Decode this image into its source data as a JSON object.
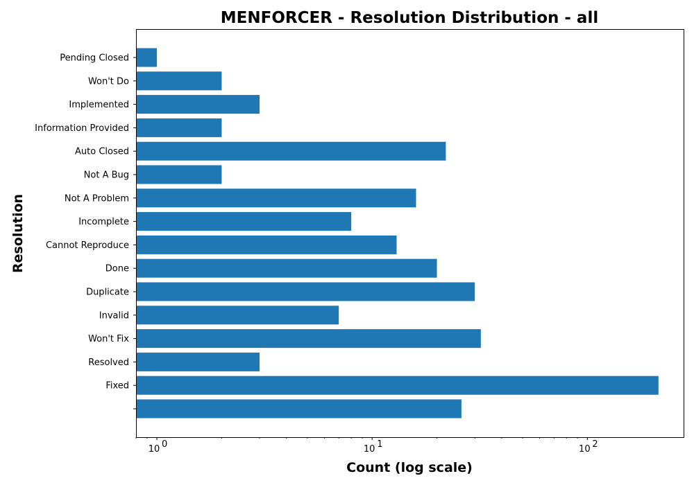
{
  "chart_data": {
    "type": "bar",
    "orientation": "horizontal",
    "title": "MENFORCER - Resolution Distribution - all",
    "xlabel": "Count (log scale)",
    "ylabel": "Resolution",
    "x_scale": "log",
    "xlim": [
      0.8,
      280
    ],
    "x_ticks": [
      {
        "value": 1,
        "base": "10",
        "exp": "0"
      },
      {
        "value": 10,
        "base": "10",
        "exp": "1"
      },
      {
        "value": 100,
        "base": "10",
        "exp": "2"
      }
    ],
    "grid": false,
    "legend": "none",
    "bar_color": "#1f77b4",
    "categories": [
      "",
      "Fixed",
      "Resolved",
      "Won't Fix",
      "Invalid",
      "Duplicate",
      "Done",
      "Cannot Reproduce",
      "Incomplete",
      "Not A Problem",
      "Not A Bug",
      "Auto Closed",
      "Information Provided",
      "Implemented",
      "Won't Do",
      "Pending Closed"
    ],
    "values": [
      26,
      214,
      3,
      32,
      7,
      30,
      20,
      13,
      8,
      16,
      2,
      22,
      2,
      3,
      2,
      1
    ]
  }
}
